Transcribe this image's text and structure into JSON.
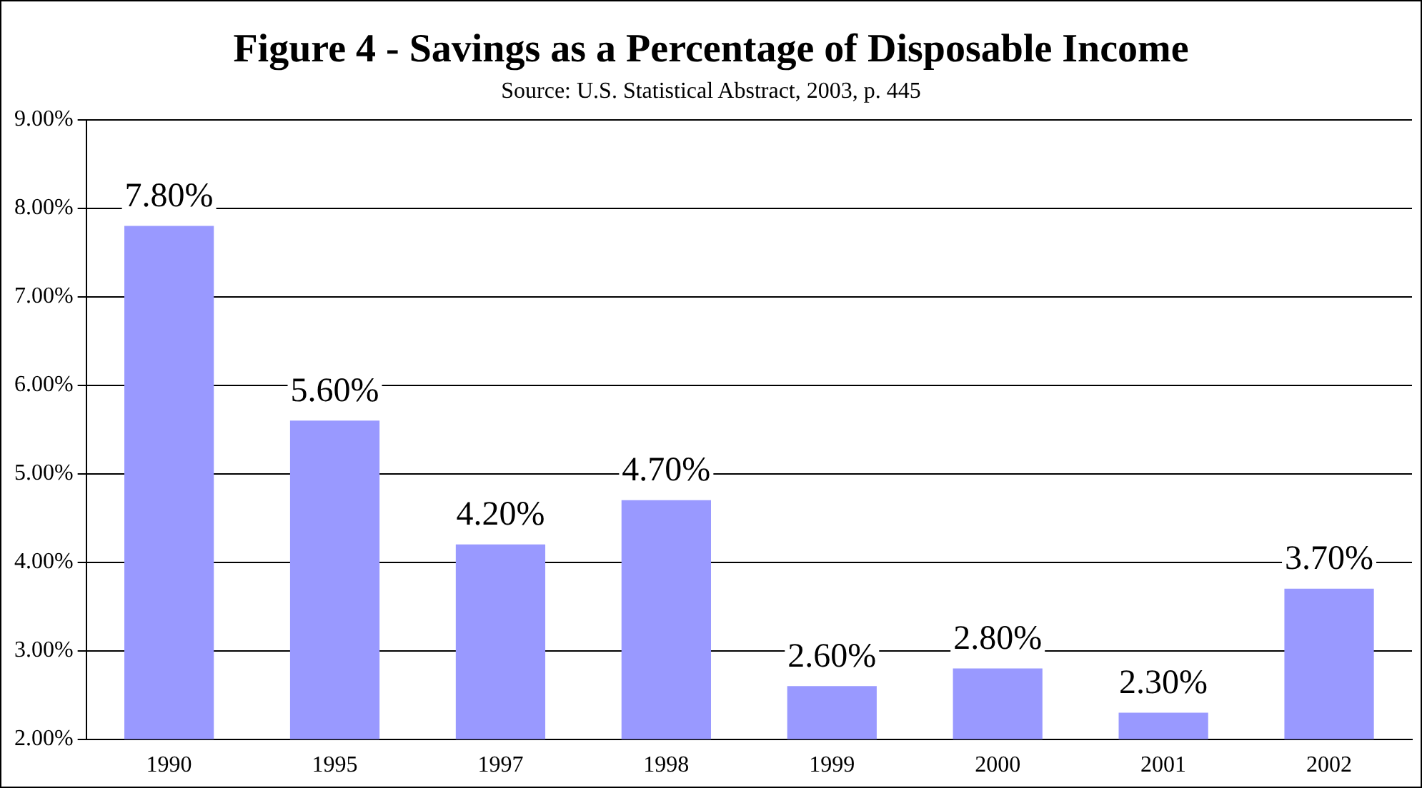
{
  "chart_data": {
    "type": "bar",
    "title": "Figure 4 - Savings as a Percentage of Disposable Income",
    "subtitle": "Source: U.S. Statistical Abstract, 2003, p. 445",
    "categories": [
      "1990",
      "1995",
      "1997",
      "1998",
      "1999",
      "2000",
      "2001",
      "2002"
    ],
    "values": [
      7.8,
      5.6,
      4.2,
      4.7,
      2.6,
      2.8,
      2.3,
      3.7
    ],
    "value_labels": [
      "7.80%",
      "5.60%",
      "4.20%",
      "4.70%",
      "2.60%",
      "2.80%",
      "2.30%",
      "3.70%"
    ],
    "color": "#9999ff",
    "ylim": [
      2,
      9
    ],
    "yticks": [
      {
        "value": 2,
        "label": "2.00%"
      },
      {
        "value": 3,
        "label": "3.00%"
      },
      {
        "value": 4,
        "label": "4.00%"
      },
      {
        "value": 5,
        "label": "5.00%"
      },
      {
        "value": 6,
        "label": "6.00%"
      },
      {
        "value": 7,
        "label": "7.00%"
      },
      {
        "value": 8,
        "label": "8.00%"
      },
      {
        "value": 9,
        "label": "9.00%"
      }
    ],
    "grid": "y",
    "legend": false
  }
}
